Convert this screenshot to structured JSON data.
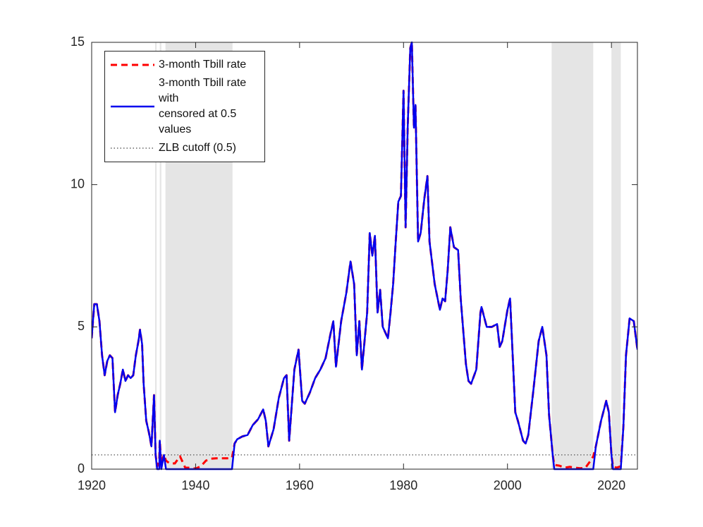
{
  "chart_data": {
    "type": "line",
    "x": [
      1920,
      1920.5,
      1921,
      1921.5,
      1922,
      1922.5,
      1923,
      1923.5,
      1924,
      1924.5,
      1925,
      1925.5,
      1926,
      1926.5,
      1927,
      1927.5,
      1928,
      1928.5,
      1929,
      1929.3,
      1929.7,
      1930,
      1930.5,
      1931,
      1931.5,
      1932,
      1932.3,
      1932.6,
      1933,
      1933.1,
      1933.4,
      1933.9,
      1934.3,
      1935,
      1936,
      1937,
      1938,
      1939,
      1940,
      1941,
      1942,
      1943,
      1944,
      1945,
      1946,
      1947,
      1947.5,
      1948,
      1949,
      1950,
      1951,
      1952,
      1953,
      1953.5,
      1954,
      1955,
      1956,
      1957,
      1957.5,
      1958,
      1959,
      1959.8,
      1960.5,
      1961,
      1962,
      1963,
      1964,
      1965,
      1966,
      1966.5,
      1967,
      1968,
      1969,
      1969.8,
      1970.5,
      1971,
      1971.5,
      1972,
      1973,
      1973.5,
      1974,
      1974.5,
      1975,
      1975.5,
      1976,
      1977,
      1977.5,
      1978,
      1978.5,
      1979,
      1979.5,
      1980,
      1980.4,
      1980.8,
      1981.3,
      1981.6,
      1982,
      1982.3,
      1982.8,
      1983.3,
      1984,
      1984.6,
      1985,
      1986,
      1987,
      1987.5,
      1988,
      1988.5,
      1989,
      1989.7,
      1990.5,
      1991,
      1992,
      1992.5,
      1993,
      1994,
      1994.8,
      1995,
      1996,
      1997,
      1998,
      1998.5,
      1999,
      2000,
      2000.5,
      2001,
      2001.5,
      2002,
      2003,
      2003.5,
      2004,
      2005,
      2006,
      2006.7,
      2007.5,
      2008,
      2008.7,
      2009,
      2010,
      2011,
      2012,
      2013,
      2014,
      2015,
      2016,
      2016.5,
      2017,
      2018,
      2019,
      2019.5,
      2020,
      2020.3,
      2021,
      2021.8,
      2022.3,
      2022.8,
      2023.5,
      2024.3,
      2025
    ],
    "series": [
      {
        "name": "3-month Tbill rate",
        "color": "#ff0000",
        "dash": true,
        "values": [
          4.6,
          5.8,
          5.8,
          5.2,
          4.0,
          3.3,
          3.8,
          4.0,
          3.9,
          2.0,
          2.6,
          3.0,
          3.5,
          3.1,
          3.3,
          3.2,
          3.3,
          4.0,
          4.5,
          4.9,
          4.4,
          3.0,
          1.7,
          1.3,
          0.8,
          2.6,
          0.5,
          0.1,
          0.3,
          1.0,
          0.2,
          0.5,
          0.3,
          0.2,
          0.2,
          0.45,
          0.05,
          0.05,
          0.02,
          0.1,
          0.3,
          0.37,
          0.38,
          0.38,
          0.38,
          0.4,
          0.9,
          1.05,
          1.15,
          1.2,
          1.55,
          1.75,
          2.1,
          1.7,
          0.8,
          1.4,
          2.5,
          3.2,
          3.3,
          1.0,
          3.5,
          4.2,
          2.4,
          2.3,
          2.7,
          3.2,
          3.5,
          3.9,
          4.8,
          5.2,
          3.6,
          5.2,
          6.2,
          7.3,
          6.5,
          4.0,
          5.2,
          3.5,
          5.5,
          8.3,
          7.5,
          8.2,
          5.5,
          6.3,
          5.0,
          4.6,
          5.5,
          6.5,
          8.0,
          9.4,
          9.6,
          13.3,
          8.5,
          12.0,
          14.8,
          15.0,
          12.0,
          12.8,
          8.0,
          8.3,
          9.5,
          10.3,
          8.0,
          6.5,
          5.6,
          6.0,
          5.9,
          7.0,
          8.5,
          7.8,
          7.7,
          6.0,
          3.7,
          3.1,
          3.0,
          3.5,
          5.5,
          5.7,
          5.0,
          5.0,
          5.1,
          4.3,
          4.5,
          5.6,
          6.0,
          4.0,
          2.0,
          1.7,
          1.0,
          0.9,
          1.2,
          2.8,
          4.5,
          5.0,
          4.0,
          1.9,
          0.5,
          0.15,
          0.12,
          0.05,
          0.08,
          0.05,
          0.03,
          0.05,
          0.3,
          0.45,
          0.8,
          1.7,
          2.4,
          2.0,
          0.5,
          0.1,
          0.05,
          0.1,
          1.5,
          4.0,
          5.3,
          5.2,
          4.2
        ]
      },
      {
        "name": "3-month Tbill rate with\ncensored at 0.5 values",
        "color": "#0000ee",
        "dash": false,
        "values": [
          4.6,
          5.8,
          5.8,
          5.2,
          4.0,
          3.3,
          3.8,
          4.0,
          3.9,
          2.0,
          2.6,
          3.0,
          3.5,
          3.1,
          3.3,
          3.2,
          3.3,
          4.0,
          4.5,
          4.9,
          4.4,
          3.0,
          1.7,
          1.3,
          0.8,
          2.6,
          0.5,
          0,
          0,
          1.0,
          0,
          0.5,
          0,
          0,
          0,
          0,
          0,
          0,
          0,
          0,
          0,
          0,
          0,
          0,
          0,
          0,
          0.9,
          1.05,
          1.15,
          1.2,
          1.55,
          1.75,
          2.1,
          1.7,
          0.8,
          1.4,
          2.5,
          3.2,
          3.3,
          1.0,
          3.5,
          4.2,
          2.4,
          2.3,
          2.7,
          3.2,
          3.5,
          3.9,
          4.8,
          5.2,
          3.6,
          5.2,
          6.2,
          7.3,
          6.5,
          4.0,
          5.2,
          3.5,
          5.5,
          8.3,
          7.5,
          8.2,
          5.5,
          6.3,
          5.0,
          4.6,
          5.5,
          6.5,
          8.0,
          9.4,
          9.6,
          13.3,
          8.5,
          12.0,
          14.8,
          15.0,
          12.0,
          12.8,
          8.0,
          8.3,
          9.5,
          10.3,
          8.0,
          6.5,
          5.6,
          6.0,
          5.9,
          7.0,
          8.5,
          7.8,
          7.7,
          6.0,
          3.7,
          3.1,
          3.0,
          3.5,
          5.5,
          5.7,
          5.0,
          5.0,
          5.1,
          4.3,
          4.5,
          5.6,
          6.0,
          4.0,
          2.0,
          1.7,
          1.0,
          0.9,
          1.2,
          2.8,
          4.5,
          5.0,
          4.0,
          1.9,
          0.5,
          0,
          0,
          0,
          0,
          0,
          0,
          0,
          0,
          0,
          0.8,
          1.7,
          2.4,
          2.0,
          0.5,
          0,
          0,
          0,
          1.5,
          4.0,
          5.3,
          5.2,
          4.2
        ]
      }
    ],
    "reference_line": {
      "name": "ZLB cutoff (0.5)",
      "value": 0.5,
      "color": "#444444"
    },
    "shaded_periods": [
      [
        1932.2,
        1932.5
      ],
      [
        1933.1,
        1933.4
      ],
      [
        1934.2,
        1947.1
      ],
      [
        2008.5,
        2016.5
      ],
      [
        2020.0,
        2021.8
      ]
    ],
    "shade_color": "#e5e5e5",
    "xlim": [
      1920,
      2025
    ],
    "xticks": [
      1920,
      1940,
      1960,
      1980,
      2000,
      2020
    ],
    "ylim": [
      0,
      15
    ],
    "yticks": [
      0,
      5,
      10,
      15
    ],
    "legend": "upper left"
  }
}
